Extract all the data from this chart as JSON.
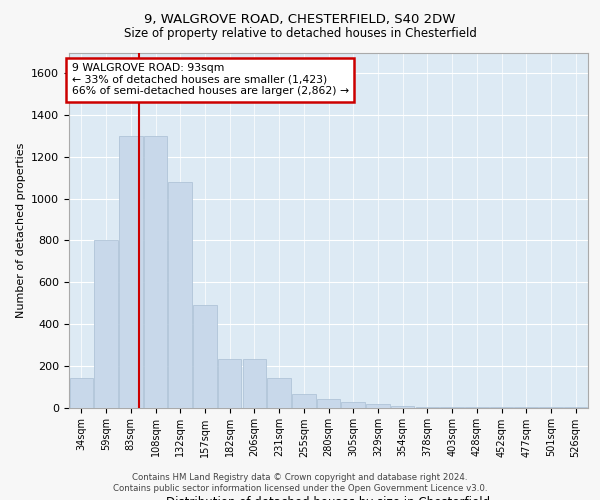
{
  "title1": "9, WALGROVE ROAD, CHESTERFIELD, S40 2DW",
  "title2": "Size of property relative to detached houses in Chesterfield",
  "xlabel": "Distribution of detached houses by size in Chesterfield",
  "ylabel": "Number of detached properties",
  "categories": [
    "34sqm",
    "59sqm",
    "83sqm",
    "108sqm",
    "132sqm",
    "157sqm",
    "182sqm",
    "206sqm",
    "231sqm",
    "255sqm",
    "280sqm",
    "305sqm",
    "329sqm",
    "354sqm",
    "378sqm",
    "403sqm",
    "428sqm",
    "452sqm",
    "477sqm",
    "501sqm",
    "526sqm"
  ],
  "values": [
    140,
    800,
    1300,
    1300,
    1080,
    490,
    230,
    230,
    140,
    65,
    40,
    25,
    15,
    8,
    4,
    3,
    2,
    1,
    1,
    1,
    1
  ],
  "bar_color": "#c8d8ea",
  "bar_edge_color": "#b0c4d8",
  "vline_x_index": 2.35,
  "vline_color": "#cc0000",
  "annotation_text": "9 WALGROVE ROAD: 93sqm\n← 33% of detached houses are smaller (1,423)\n66% of semi-detached houses are larger (2,862) →",
  "annotation_box_color": "#ffffff",
  "annotation_box_edge": "#cc0000",
  "ylim": [
    0,
    1700
  ],
  "yticks": [
    0,
    200,
    400,
    600,
    800,
    1000,
    1200,
    1400,
    1600
  ],
  "footer1": "Contains HM Land Registry data © Crown copyright and database right 2024.",
  "footer2": "Contains public sector information licensed under the Open Government Licence v3.0.",
  "fig_bg_color": "#f7f7f7",
  "plot_bg_color": "#ddeaf4"
}
